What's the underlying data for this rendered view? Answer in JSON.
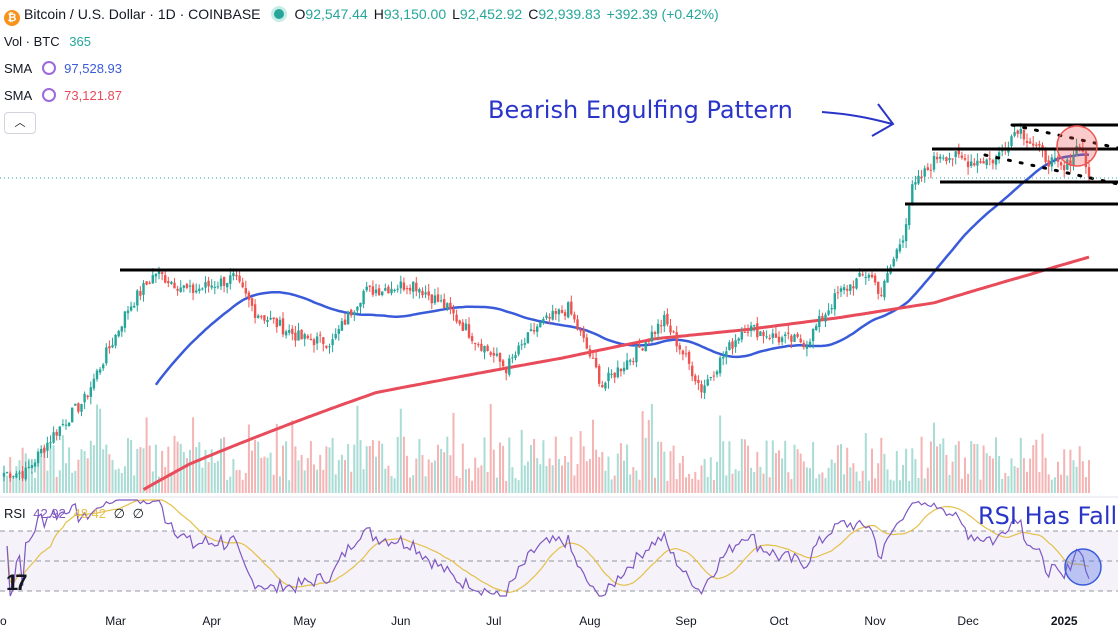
{
  "header": {
    "symbol_title": "Bitcoin / U.S. Dollar · 1D · COINBASE",
    "ohlc": [
      {
        "label": "O",
        "value": "92,547.44"
      },
      {
        "label": "H",
        "value": "93,150.00"
      },
      {
        "label": "L",
        "value": "92,452.92"
      },
      {
        "label": "C",
        "value": "92,939.83"
      }
    ],
    "change": "+392.39 (+0.42%)",
    "icon": "bitcoin-icon"
  },
  "indicators": {
    "volume": {
      "label": "Vol · BTC",
      "value": "365"
    },
    "sma_fast": {
      "label": "SMA",
      "value": "97,528.93",
      "color": "#3a5bd9"
    },
    "sma_slow": {
      "label": "SMA",
      "value": "73,121.87",
      "color": "#e84b5a"
    },
    "rsi": {
      "label": "RSI",
      "value": "42.92",
      "ma_value": "48.42",
      "extra1": "∅",
      "extra2": "∅"
    }
  },
  "colors": {
    "up": "#26a69a",
    "down": "#ef5350",
    "sma_fast": "#3a5bd9",
    "sma_slow": "#e84b5a",
    "rsi": "#7e57c2",
    "rsi_ma": "#e5c04a",
    "annotation": "#2a35c8"
  },
  "chart_data": {
    "type": "candlestick",
    "x_tick_labels": [
      "Mar",
      "Apr",
      "May",
      "Jun",
      "Jul",
      "Aug",
      "Sep",
      "Oct",
      "Nov",
      "Dec",
      "2025"
    ],
    "x_axis_partial_first_label": "o",
    "close_series_sampled": [
      {
        "x": "Feb 1",
        "close": 43000
      },
      {
        "x": "Feb 10",
        "close": 47500
      },
      {
        "x": "Feb 20",
        "close": 52000
      },
      {
        "x": "Mar 1",
        "close": 61500
      },
      {
        "x": "Mar 5",
        "close": 66000
      },
      {
        "x": "Mar 14",
        "close": 72500
      },
      {
        "x": "Mar 25",
        "close": 69000
      },
      {
        "x": "Apr 8",
        "close": 71500
      },
      {
        "x": "Apr 15",
        "close": 65500
      },
      {
        "x": "Apr 30",
        "close": 61000
      },
      {
        "x": "May 10",
        "close": 60500
      },
      {
        "x": "May 20",
        "close": 69000
      },
      {
        "x": "Jun 5",
        "close": 70500
      },
      {
        "x": "Jun 15",
        "close": 66500
      },
      {
        "x": "Jun 25",
        "close": 61000
      },
      {
        "x": "Jul 5",
        "close": 56500
      },
      {
        "x": "Jul 15",
        "close": 63000
      },
      {
        "x": "Jul 25",
        "close": 66000
      },
      {
        "x": "Aug 5",
        "close": 54000
      },
      {
        "x": "Aug 15",
        "close": 58500
      },
      {
        "x": "Aug 25",
        "close": 64000
      },
      {
        "x": "Sep 6",
        "close": 53500
      },
      {
        "x": "Sep 20",
        "close": 63000
      },
      {
        "x": "Oct 1",
        "close": 61000
      },
      {
        "x": "Oct 10",
        "close": 60500
      },
      {
        "x": "Oct 20",
        "close": 68500
      },
      {
        "x": "Oct 30",
        "close": 72500
      },
      {
        "x": "Nov 3",
        "close": 68500
      },
      {
        "x": "Nov 10",
        "close": 80000
      },
      {
        "x": "Nov 13",
        "close": 90000
      },
      {
        "x": "Nov 22",
        "close": 99000
      },
      {
        "x": "Dec 1",
        "close": 97000
      },
      {
        "x": "Dec 10",
        "close": 97500
      },
      {
        "x": "Dec 17",
        "close": 106000
      },
      {
        "x": "Dec 25",
        "close": 98500
      },
      {
        "x": "Jan 1",
        "close": 94500
      },
      {
        "x": "Jan 6",
        "close": 102000
      },
      {
        "x": "Jan 9",
        "close": 92900
      }
    ],
    "series": [
      {
        "name": "SMA",
        "last_value": 97528.93
      },
      {
        "name": "SMA",
        "last_value": 73121.87
      },
      {
        "name": "RSI",
        "last_value": 42.92
      }
    ],
    "annotations": [
      "Bearish Engulfing Pattern",
      "RSI Has Fall"
    ],
    "legend_position": "top-left",
    "grid": false
  }
}
